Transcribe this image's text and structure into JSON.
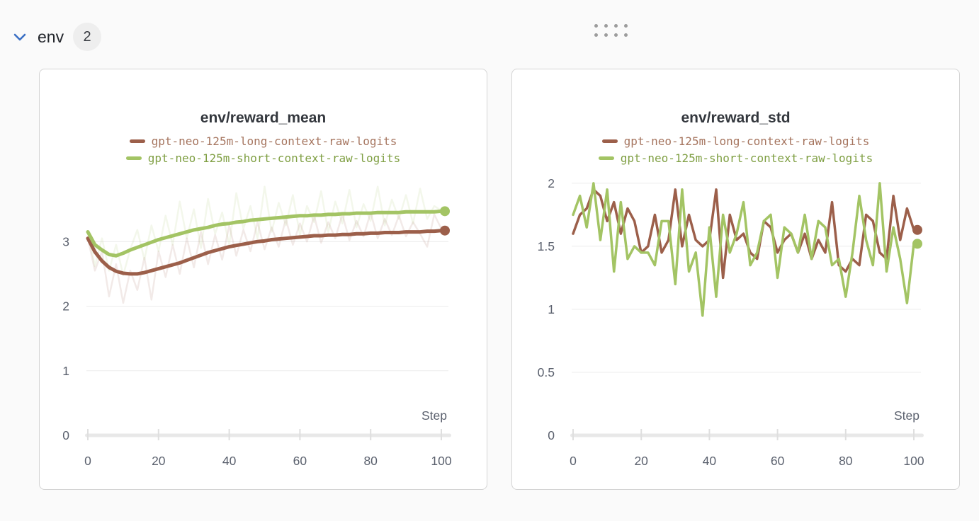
{
  "colors": {
    "background": "#fafafa",
    "panel_border": "#d4d4d4",
    "accent_blue": "#3b70c4",
    "title_text": "#33373d",
    "axis_text": "#5b616e",
    "grid": "#ececec",
    "axis_bar": "#e8e8e8",
    "tick": "#dfdfdf"
  },
  "header": {
    "title": "env",
    "count": "2",
    "collapse_icon": "chevron-down-icon"
  },
  "drag_handle": {
    "icon": "drag-dots-icon",
    "dots": 8
  },
  "chart_data": [
    {
      "type": "line",
      "title": "env/reward_mean",
      "xlabel": "Step",
      "xlim": [
        0,
        100
      ],
      "ylim": [
        0,
        4.0
      ],
      "x_ticks": [
        0,
        20,
        40,
        60,
        80,
        100
      ],
      "y_gridlines": [
        3,
        2,
        1
      ],
      "y_axis_label": "0",
      "x_start": 0,
      "x_step": 2,
      "legend_position": "top",
      "grid": true,
      "layout": {
        "margin_left": 68,
        "line_width": 5,
        "raw_opacity": 0.13
      },
      "series": [
        {
          "name": "gpt-neo-125m-long-context-raw-logits",
          "color": "#9c5f4a",
          "text_color": "#a5745e",
          "end_dot": true,
          "values": [
            3.05,
            2.84,
            2.7,
            2.6,
            2.54,
            2.51,
            2.5,
            2.5,
            2.52,
            2.55,
            2.58,
            2.61,
            2.64,
            2.67,
            2.71,
            2.75,
            2.79,
            2.83,
            2.86,
            2.89,
            2.92,
            2.94,
            2.96,
            2.98,
            3.0,
            3.01,
            3.03,
            3.04,
            3.05,
            3.06,
            3.07,
            3.08,
            3.09,
            3.09,
            3.1,
            3.1,
            3.11,
            3.11,
            3.12,
            3.12,
            3.13,
            3.13,
            3.14,
            3.14,
            3.14,
            3.15,
            3.15,
            3.15,
            3.16,
            3.16,
            3.17
          ],
          "raw_values": [
            3.05,
            2.55,
            2.85,
            2.15,
            2.65,
            2.05,
            2.55,
            2.25,
            2.75,
            2.1,
            2.85,
            2.45,
            2.95,
            2.5,
            3.05,
            2.6,
            3.15,
            2.65,
            3.1,
            2.72,
            3.25,
            2.78,
            3.18,
            2.85,
            3.3,
            2.88,
            3.22,
            2.92,
            3.35,
            2.95,
            3.28,
            3.0,
            3.4,
            2.98,
            3.3,
            3.05,
            3.42,
            3.02,
            3.32,
            3.08,
            3.45,
            3.05,
            3.35,
            3.1,
            3.4,
            3.08,
            3.3,
            3.12,
            2.92,
            3.42,
            3.2
          ]
        },
        {
          "name": "gpt-neo-125m-short-context-raw-logits",
          "color": "#a3c464",
          "text_color": "#7f9f43",
          "end_dot": true,
          "values": [
            3.15,
            2.95,
            2.87,
            2.8,
            2.78,
            2.82,
            2.87,
            2.91,
            2.95,
            2.99,
            3.03,
            3.06,
            3.09,
            3.12,
            3.15,
            3.18,
            3.2,
            3.22,
            3.25,
            3.27,
            3.28,
            3.3,
            3.31,
            3.33,
            3.34,
            3.35,
            3.36,
            3.37,
            3.38,
            3.39,
            3.4,
            3.4,
            3.41,
            3.41,
            3.42,
            3.42,
            3.43,
            3.43,
            3.44,
            3.44,
            3.44,
            3.45,
            3.45,
            3.45,
            3.45,
            3.46,
            3.46,
            3.46,
            3.46,
            3.46,
            3.47
          ],
          "raw_values": [
            3.15,
            2.62,
            3.05,
            2.55,
            2.95,
            2.48,
            2.88,
            3.18,
            2.72,
            3.25,
            2.85,
            3.4,
            2.95,
            3.62,
            3.05,
            3.5,
            2.9,
            3.66,
            3.12,
            3.45,
            2.95,
            3.75,
            3.2,
            3.55,
            3.05,
            3.85,
            3.15,
            3.6,
            3.25,
            3.72,
            3.1,
            3.55,
            3.3,
            3.78,
            3.15,
            3.62,
            3.28,
            3.8,
            3.22,
            3.58,
            3.32,
            3.85,
            3.25,
            3.65,
            3.35,
            3.72,
            3.28,
            3.82,
            3.35,
            3.55,
            3.48
          ]
        }
      ]
    },
    {
      "type": "line",
      "title": "env/reward_std",
      "xlabel": "Step",
      "xlim": [
        0,
        100
      ],
      "ylim": [
        0,
        2.05
      ],
      "x_ticks": [
        0,
        20,
        40,
        60,
        80,
        100
      ],
      "y_gridlines": [
        2,
        1.5,
        1,
        0.5
      ],
      "y_axis_label": "0",
      "x_start": 0,
      "x_step": 2,
      "legend_position": "top",
      "grid": true,
      "layout": {
        "margin_left": 86,
        "line_width": 3.5,
        "raw_opacity": 0
      },
      "series": [
        {
          "name": "gpt-neo-125m-long-context-raw-logits",
          "color": "#9c5f4a",
          "text_color": "#a5745e",
          "end_dot": true,
          "values": [
            1.6,
            1.75,
            1.8,
            1.95,
            1.9,
            1.7,
            1.85,
            1.6,
            1.8,
            1.7,
            1.45,
            1.5,
            1.75,
            1.45,
            1.55,
            1.95,
            1.5,
            1.75,
            1.55,
            1.5,
            1.55,
            1.95,
            1.25,
            1.75,
            1.55,
            1.6,
            1.45,
            1.4,
            1.7,
            1.65,
            1.45,
            1.55,
            1.6,
            1.45,
            1.6,
            1.4,
            1.55,
            1.45,
            1.85,
            1.35,
            1.3,
            1.4,
            1.35,
            1.75,
            1.7,
            1.45,
            1.4,
            1.9,
            1.55,
            1.8,
            1.63
          ]
        },
        {
          "name": "gpt-neo-125m-short-context-raw-logits",
          "color": "#a3c464",
          "text_color": "#7f9f43",
          "end_dot": true,
          "values": [
            1.75,
            1.9,
            1.65,
            2.0,
            1.55,
            1.95,
            1.3,
            1.85,
            1.4,
            1.5,
            1.45,
            1.45,
            1.35,
            1.7,
            1.7,
            1.2,
            1.95,
            1.3,
            1.45,
            0.95,
            1.65,
            1.1,
            1.75,
            1.45,
            1.6,
            1.85,
            1.35,
            1.45,
            1.7,
            1.75,
            1.25,
            1.65,
            1.6,
            1.45,
            1.75,
            1.4,
            1.7,
            1.65,
            1.35,
            1.4,
            1.1,
            1.45,
            1.9,
            1.55,
            1.35,
            2.0,
            1.3,
            1.65,
            1.4,
            1.05,
            1.52
          ]
        }
      ]
    }
  ]
}
